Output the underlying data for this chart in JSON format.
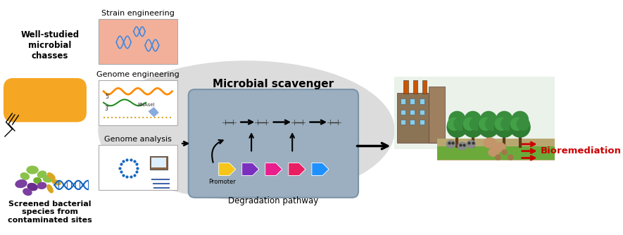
{
  "bg_color": "#ffffff",
  "fig_width": 8.85,
  "fig_height": 3.34,
  "sections": {
    "left_top_label": "Well-studied\nmicrobial\nchasses",
    "left_bottom_label": "Screened bacterial\nspecies from\ncontaminated sites",
    "mid_top_label": "Strain engineering",
    "mid_mid_label": "Genome engineering",
    "mid_bot_label": "Genome analysis",
    "center_title": "Microbial scavenger",
    "center_subtitle": "Degradation pathway",
    "promoter_label": "Promoter",
    "right_label": "Bioremediation"
  },
  "colors": {
    "orange_capsule": "#F5A623",
    "gray_blob": "#DCDCDC",
    "box_bg": "#9BAFC0",
    "box_edge": "#7A94A8",
    "strain_bg": "#F2B09A",
    "genome_bg": "#FFFFFF",
    "arrow_black": "#1a1a1a",
    "gene_yellow": "#F5C518",
    "gene_purple": "#7B2FBE",
    "gene_magenta": "#E91E8C",
    "gene_pink": "#E91E63",
    "gene_blue": "#1E90FF",
    "red_arrow": "#CC0000",
    "bioremediation_red": "#CC0000",
    "green_dark": "#2D7A2D",
    "green_mid": "#3A9A3A",
    "brown_dark": "#6B4423",
    "brown_mid": "#8B5E3C",
    "sky_blue": "#D0E8F0",
    "ground_tan": "#C8B078",
    "ground_green": "#6BAA3A"
  }
}
